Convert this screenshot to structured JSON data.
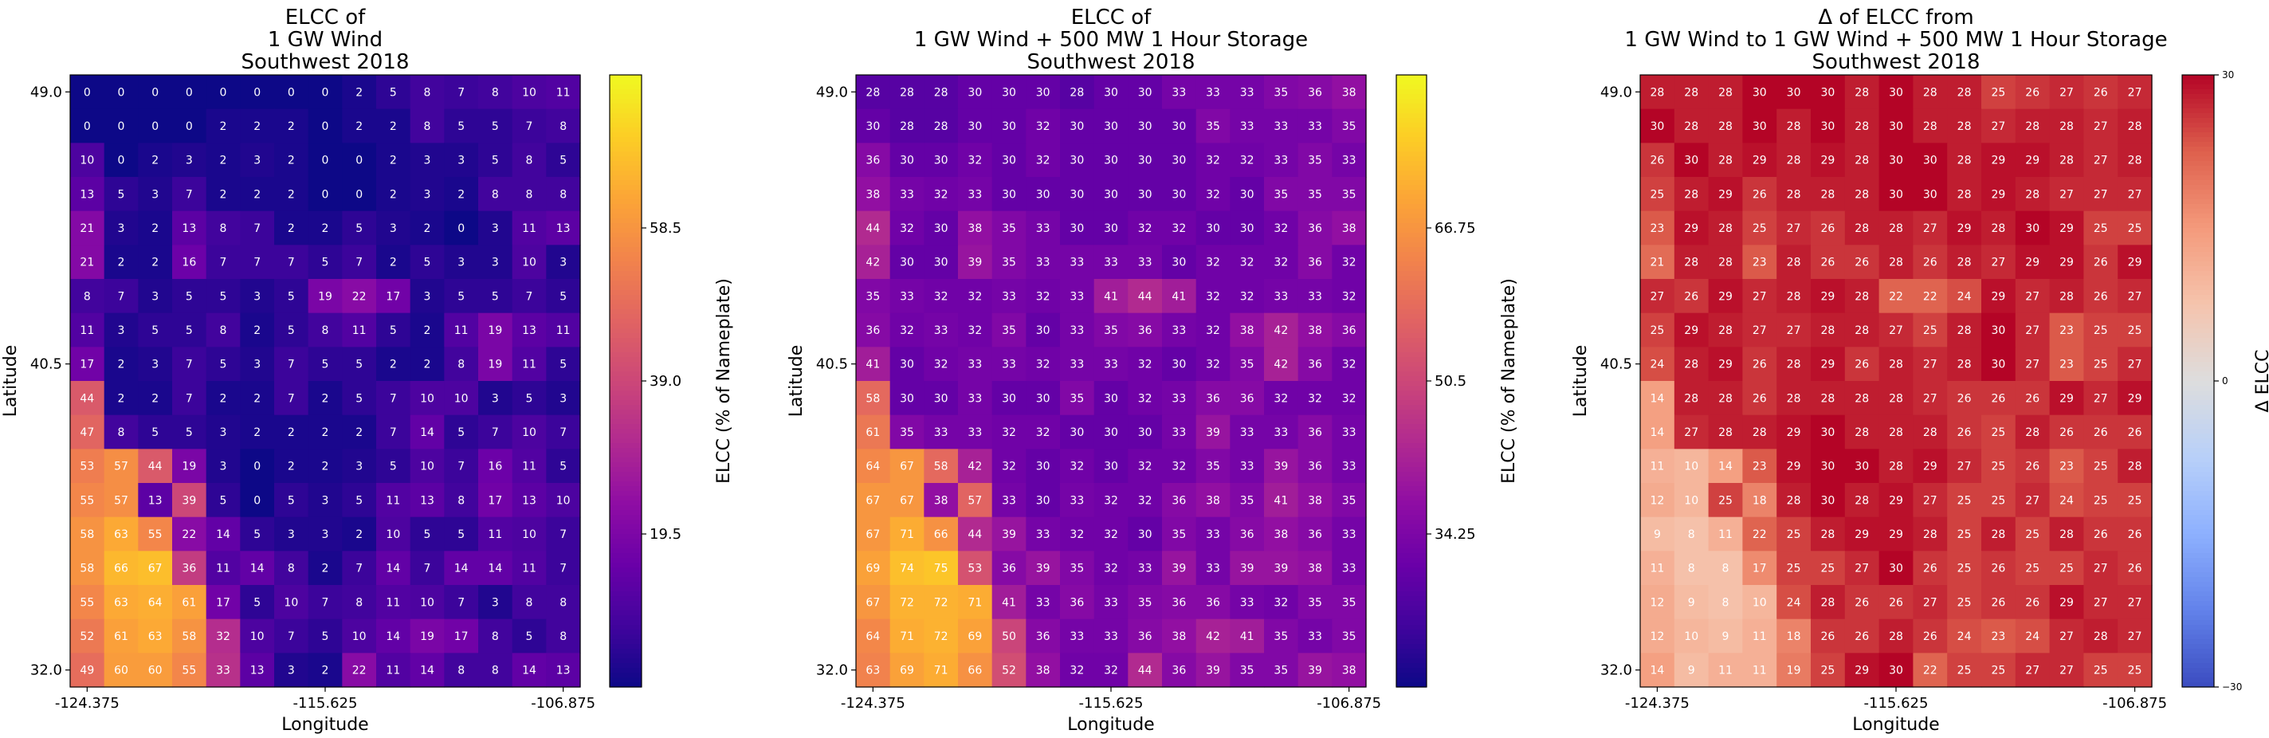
{
  "figure": {
    "panels": [
      {
        "id": "p1",
        "title_lines": [
          "ELCC of",
          "1 GW Wind",
          "Southwest 2018"
        ],
        "xlabel": "Longitude",
        "ylabel": "Latitude",
        "cbar_label": "ELCC (% of Nameplate)",
        "cmap": "plasma",
        "vmin": 0,
        "vmax": 78,
        "cbar_ticks": [
          19.5,
          39.0,
          58.5
        ],
        "cbar_tick_labels": [
          "19.5",
          "39.0",
          "58.5"
        ]
      },
      {
        "id": "p2",
        "title_lines": [
          "ELCC of",
          "1 GW Wind + 500 MW 1 Hour Storage",
          "Southwest 2018"
        ],
        "xlabel": "Longitude",
        "ylabel": "Latitude",
        "cbar_label": "ELCC (% of Nameplate)",
        "cmap": "plasma",
        "vmin": 18,
        "vmax": 83,
        "cbar_ticks": [
          34.25,
          50.5,
          66.75
        ],
        "cbar_tick_labels": [
          "34.25",
          "50.5",
          "66.75"
        ]
      },
      {
        "id": "p3",
        "title_lines": [
          "Δ of ELCC from",
          "1 GW Wind to 1 GW Wind + 500 MW 1 Hour Storage",
          "Southwest 2018"
        ],
        "xlabel": "Longitude",
        "ylabel": "Latitude",
        "cbar_label": "Δ ELCC",
        "cmap": "coolwarm",
        "vmin": -30,
        "vmax": 30,
        "cbar_ticks": [
          -30,
          0,
          30
        ],
        "cbar_tick_labels": [
          "−30",
          "0",
          "30"
        ]
      }
    ]
  },
  "chart_data": [
    {
      "type": "heatmap",
      "title": "ELCC of\n1 GW Wind\nSouthwest 2018",
      "xlabel": "Longitude",
      "ylabel": "Latitude",
      "colorbar_label": "ELCC (% of Nameplate)",
      "x_tick_labels": [
        "-124.375",
        "-115.625",
        "-106.875"
      ],
      "y_tick_labels": [
        "49.0",
        "40.5",
        "32.0"
      ],
      "rows_top_to_bottom": [
        [
          0,
          0,
          0,
          0,
          0,
          0,
          0,
          0,
          2,
          5,
          8,
          7,
          8,
          10,
          11
        ],
        [
          0,
          0,
          0,
          0,
          2,
          2,
          2,
          0,
          2,
          2,
          8,
          5,
          5,
          7,
          8
        ],
        [
          10,
          0,
          2,
          3,
          2,
          3,
          2,
          0,
          0,
          2,
          3,
          3,
          5,
          8,
          5
        ],
        [
          13,
          5,
          3,
          7,
          2,
          2,
          2,
          0,
          0,
          2,
          3,
          2,
          8,
          8,
          8
        ],
        [
          21,
          3,
          2,
          13,
          8,
          7,
          2,
          2,
          5,
          3,
          2,
          0,
          3,
          11,
          13
        ],
        [
          21,
          2,
          2,
          16,
          7,
          7,
          7,
          5,
          7,
          2,
          5,
          3,
          3,
          10,
          3
        ],
        [
          8,
          7,
          3,
          5,
          5,
          3,
          5,
          19,
          22,
          17,
          3,
          5,
          5,
          7,
          5
        ],
        [
          11,
          3,
          5,
          5,
          8,
          2,
          5,
          8,
          11,
          5,
          2,
          11,
          19,
          13,
          11
        ],
        [
          17,
          2,
          3,
          7,
          5,
          3,
          7,
          5,
          5,
          2,
          2,
          8,
          19,
          11,
          5
        ],
        [
          44,
          2,
          2,
          7,
          2,
          2,
          7,
          2,
          5,
          7,
          10,
          10,
          3,
          5,
          3
        ],
        [
          47,
          8,
          5,
          5,
          3,
          2,
          2,
          2,
          2,
          7,
          14,
          5,
          7,
          10,
          7
        ],
        [
          53,
          57,
          44,
          19,
          3,
          0,
          2,
          2,
          3,
          5,
          10,
          7,
          16,
          11,
          5
        ],
        [
          55,
          57,
          13,
          39,
          5,
          0,
          5,
          3,
          5,
          11,
          13,
          8,
          17,
          13,
          10
        ],
        [
          58,
          63,
          55,
          22,
          14,
          5,
          3,
          3,
          2,
          10,
          5,
          5,
          11,
          10,
          7
        ],
        [
          58,
          66,
          67,
          36,
          11,
          14,
          8,
          2,
          7,
          14,
          7,
          14,
          14,
          11,
          7
        ],
        [
          55,
          63,
          64,
          61,
          17,
          5,
          10,
          7,
          8,
          11,
          10,
          7,
          3,
          8,
          8
        ],
        [
          52,
          61,
          63,
          58,
          32,
          10,
          7,
          5,
          10,
          14,
          19,
          17,
          8,
          5,
          8
        ],
        [
          49,
          60,
          60,
          55,
          33,
          13,
          3,
          2,
          22,
          11,
          14,
          8,
          8,
          14,
          13
        ]
      ]
    },
    {
      "type": "heatmap",
      "title": "ELCC of\n1 GW Wind + 500 MW 1 Hour Storage\nSouthwest 2018",
      "xlabel": "Longitude",
      "ylabel": "Latitude",
      "colorbar_label": "ELCC (% of Nameplate)",
      "x_tick_labels": [
        "-124.375",
        "-115.625",
        "-106.875"
      ],
      "y_tick_labels": [
        "49.0",
        "40.5",
        "32.0"
      ],
      "rows_top_to_bottom": [
        [
          28,
          28,
          28,
          30,
          30,
          30,
          28,
          30,
          30,
          33,
          33,
          33,
          35,
          36,
          38
        ],
        [
          30,
          28,
          28,
          30,
          30,
          32,
          30,
          30,
          30,
          30,
          35,
          33,
          33,
          33,
          35
        ],
        [
          36,
          30,
          30,
          32,
          30,
          32,
          30,
          30,
          30,
          30,
          32,
          32,
          33,
          35,
          33
        ],
        [
          38,
          33,
          32,
          33,
          30,
          30,
          30,
          30,
          30,
          30,
          32,
          30,
          35,
          35,
          35
        ],
        [
          44,
          32,
          30,
          38,
          35,
          33,
          30,
          30,
          32,
          32,
          30,
          30,
          32,
          36,
          38
        ],
        [
          42,
          30,
          30,
          39,
          35,
          33,
          33,
          33,
          33,
          30,
          32,
          32,
          32,
          36,
          32
        ],
        [
          35,
          33,
          32,
          32,
          33,
          32,
          33,
          41,
          44,
          41,
          32,
          32,
          33,
          33,
          32
        ],
        [
          36,
          32,
          33,
          32,
          35,
          30,
          33,
          35,
          36,
          33,
          32,
          38,
          42,
          38,
          36
        ],
        [
          41,
          30,
          32,
          33,
          33,
          32,
          33,
          33,
          32,
          30,
          32,
          35,
          42,
          36,
          32
        ],
        [
          58,
          30,
          30,
          33,
          30,
          30,
          35,
          30,
          32,
          33,
          36,
          36,
          32,
          32,
          32
        ],
        [
          61,
          35,
          33,
          33,
          32,
          32,
          30,
          30,
          30,
          33,
          39,
          33,
          33,
          36,
          33
        ],
        [
          64,
          67,
          58,
          42,
          32,
          30,
          32,
          30,
          32,
          32,
          35,
          33,
          39,
          36,
          33
        ],
        [
          67,
          67,
          38,
          57,
          33,
          30,
          33,
          32,
          32,
          36,
          38,
          35,
          41,
          38,
          35
        ],
        [
          67,
          71,
          66,
          44,
          39,
          33,
          32,
          32,
          30,
          35,
          33,
          36,
          38,
          36,
          33
        ],
        [
          69,
          74,
          75,
          53,
          36,
          39,
          35,
          32,
          33,
          39,
          33,
          39,
          39,
          38,
          33
        ],
        [
          67,
          72,
          72,
          71,
          41,
          33,
          36,
          33,
          35,
          36,
          36,
          33,
          32,
          35,
          35
        ],
        [
          64,
          71,
          72,
          69,
          50,
          36,
          33,
          33,
          36,
          38,
          42,
          41,
          35,
          33,
          35
        ],
        [
          63,
          69,
          71,
          66,
          52,
          38,
          32,
          32,
          44,
          36,
          39,
          35,
          35,
          39,
          38
        ]
      ]
    },
    {
      "type": "heatmap",
      "title": "Δ of ELCC from\n1 GW Wind to 1 GW Wind + 500 MW 1 Hour Storage\nSouthwest 2018",
      "xlabel": "Longitude",
      "ylabel": "Latitude",
      "colorbar_label": "Δ ELCC",
      "x_tick_labels": [
        "-124.375",
        "-115.625",
        "-106.875"
      ],
      "y_tick_labels": [
        "49.0",
        "40.5",
        "32.0"
      ],
      "rows_top_to_bottom": [
        [
          28,
          28,
          28,
          30,
          30,
          30,
          28,
          30,
          28,
          28,
          25,
          26,
          27,
          26,
          27
        ],
        [
          30,
          28,
          28,
          30,
          28,
          30,
          28,
          30,
          28,
          28,
          27,
          28,
          28,
          27,
          28
        ],
        [
          26,
          30,
          28,
          29,
          28,
          29,
          28,
          30,
          30,
          28,
          29,
          29,
          28,
          27,
          28
        ],
        [
          25,
          28,
          29,
          26,
          28,
          28,
          28,
          30,
          30,
          28,
          29,
          28,
          27,
          27,
          27
        ],
        [
          23,
          29,
          28,
          25,
          27,
          26,
          28,
          28,
          27,
          29,
          28,
          30,
          29,
          25,
          25
        ],
        [
          21,
          28,
          28,
          23,
          28,
          26,
          26,
          28,
          26,
          28,
          27,
          29,
          29,
          26,
          29
        ],
        [
          27,
          26,
          29,
          27,
          28,
          29,
          28,
          22,
          22,
          24,
          29,
          27,
          28,
          26,
          27
        ],
        [
          25,
          29,
          28,
          27,
          27,
          28,
          28,
          27,
          25,
          28,
          30,
          27,
          23,
          25,
          25
        ],
        [
          24,
          28,
          29,
          26,
          28,
          29,
          26,
          28,
          27,
          28,
          30,
          27,
          23,
          25,
          27
        ],
        [
          14,
          28,
          28,
          26,
          28,
          28,
          28,
          28,
          27,
          26,
          26,
          26,
          29,
          27,
          29
        ],
        [
          14,
          27,
          28,
          28,
          29,
          30,
          28,
          28,
          28,
          26,
          25,
          28,
          26,
          26,
          26
        ],
        [
          11,
          10,
          14,
          23,
          29,
          30,
          30,
          28,
          29,
          27,
          25,
          26,
          23,
          25,
          28
        ],
        [
          12,
          10,
          25,
          18,
          28,
          30,
          28,
          29,
          27,
          25,
          25,
          27,
          24,
          25,
          25
        ],
        [
          9,
          8,
          11,
          22,
          25,
          28,
          29,
          29,
          28,
          25,
          28,
          25,
          28,
          26,
          26
        ],
        [
          11,
          8,
          8,
          17,
          25,
          25,
          27,
          30,
          26,
          25,
          26,
          25,
          25,
          27,
          26
        ],
        [
          12,
          9,
          8,
          10,
          24,
          28,
          26,
          26,
          27,
          25,
          26,
          26,
          29,
          27,
          27
        ],
        [
          12,
          10,
          9,
          11,
          18,
          26,
          26,
          28,
          26,
          24,
          23,
          24,
          27,
          28,
          27
        ],
        [
          14,
          9,
          11,
          11,
          19,
          25,
          29,
          30,
          22,
          25,
          25,
          27,
          27,
          25,
          25
        ]
      ]
    }
  ]
}
